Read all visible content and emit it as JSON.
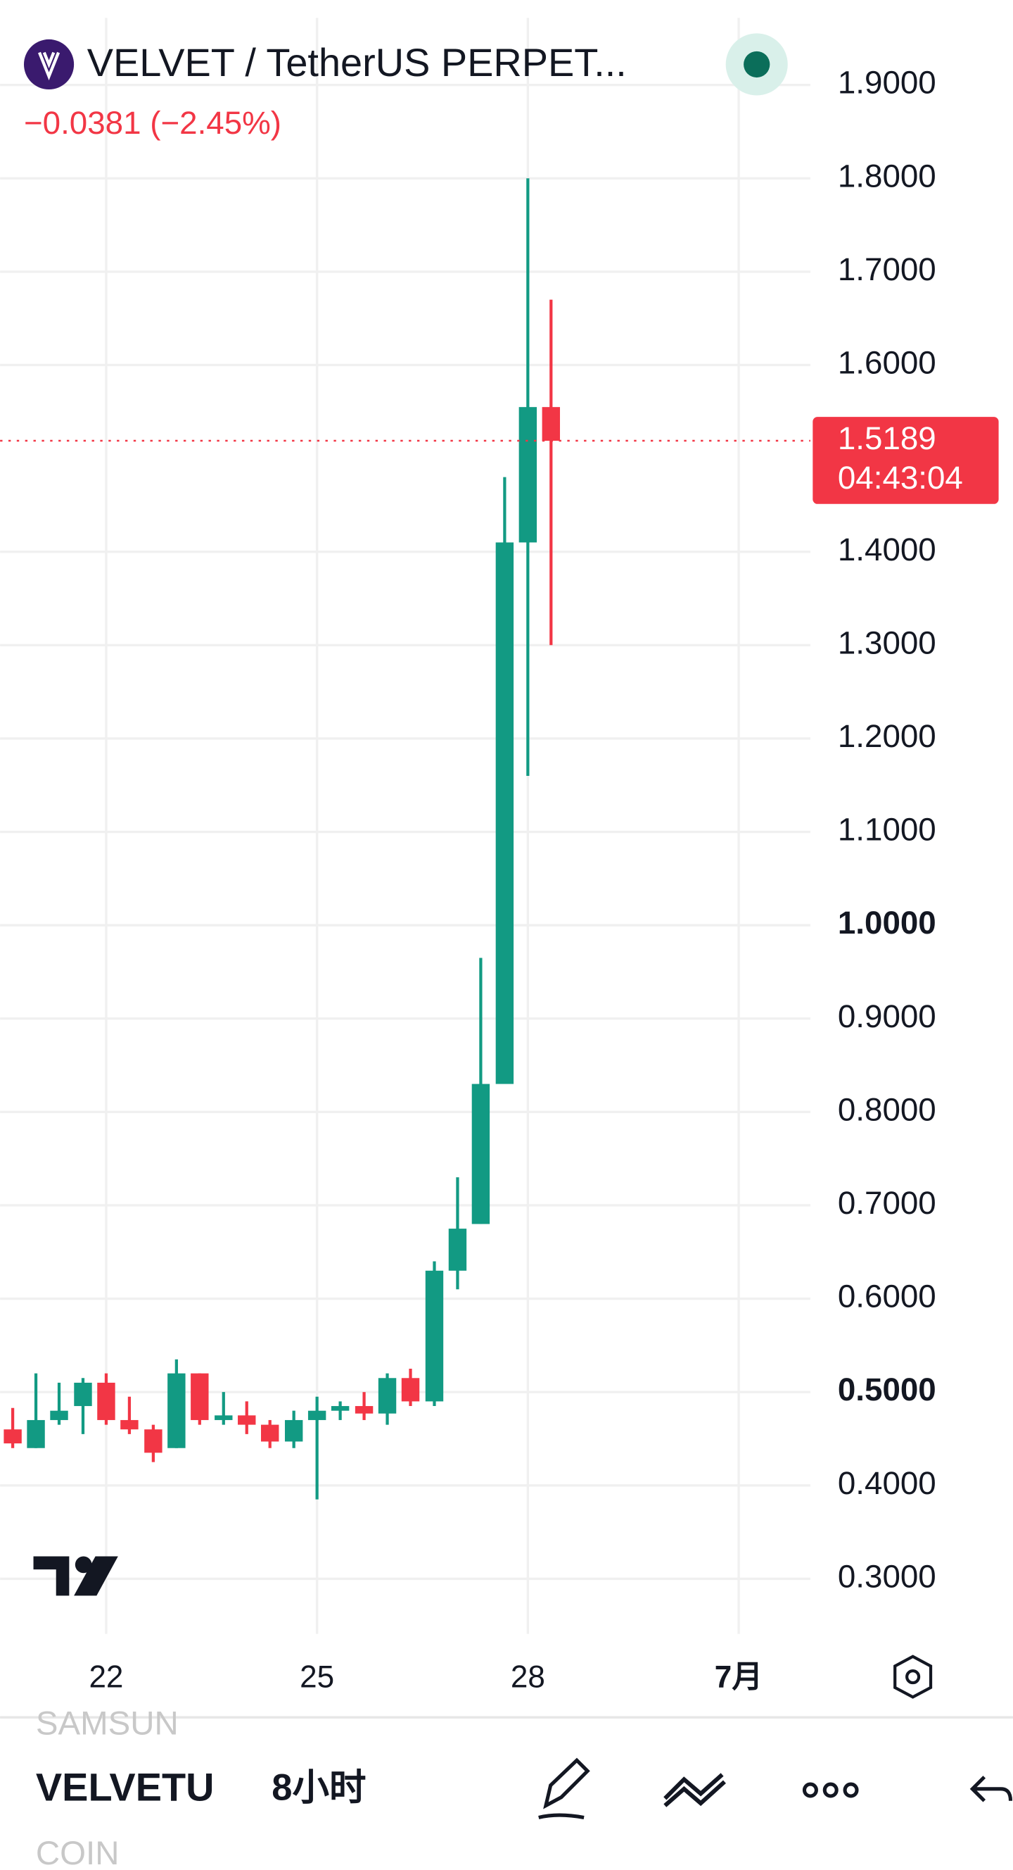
{
  "chart_data": {
    "type": "candlestick",
    "title": "VELVET / TetherUS PERPET...",
    "subtitle": "−0.0381 (−2.45%)",
    "x": [
      20.67,
      21,
      21.33,
      21.67,
      22,
      22.33,
      22.67,
      23,
      23.33,
      23.67,
      24,
      24.33,
      24.67,
      25,
      25.33,
      25.67,
      26,
      26.33,
      26.67,
      27,
      27.33,
      27.67,
      28,
      28.33
    ],
    "open": [
      0.46,
      0.44,
      0.47,
      0.485,
      0.51,
      0.47,
      0.46,
      0.44,
      0.52,
      0.47,
      0.475,
      0.465,
      0.447,
      0.47,
      0.48,
      0.485,
      0.477,
      0.515,
      0.49,
      0.63,
      0.68,
      0.83,
      1.41,
      1.555
    ],
    "high": [
      0.483,
      0.52,
      0.51,
      0.515,
      0.52,
      0.495,
      0.465,
      0.535,
      0.52,
      0.5,
      0.49,
      0.47,
      0.48,
      0.495,
      0.49,
      0.5,
      0.52,
      0.525,
      0.64,
      0.73,
      0.965,
      1.48,
      1.8,
      1.67
    ],
    "low": [
      0.44,
      0.44,
      0.465,
      0.455,
      0.465,
      0.455,
      0.425,
      0.44,
      0.465,
      0.465,
      0.455,
      0.44,
      0.44,
      0.385,
      0.47,
      0.47,
      0.465,
      0.485,
      0.485,
      0.61,
      0.68,
      0.83,
      1.16,
      1.3
    ],
    "close": [
      0.445,
      0.47,
      0.48,
      0.51,
      0.47,
      0.46,
      0.435,
      0.52,
      0.47,
      0.475,
      0.465,
      0.447,
      0.47,
      0.48,
      0.485,
      0.477,
      0.515,
      0.49,
      0.63,
      0.675,
      0.83,
      1.41,
      1.555,
      1.5189
    ],
    "up_color": "#129a83",
    "down_color": "#f23645",
    "xlim": [
      20.49,
      32.02
    ],
    "xticks": [
      22,
      25,
      28,
      {
        "value": 31,
        "label": "7月"
      }
    ],
    "ylim": [
      0.241,
      1.991
    ],
    "yticks": [
      {
        "value": 1.9,
        "label": "1.9000"
      },
      {
        "value": 1.8,
        "label": "1.8000"
      },
      {
        "value": 1.7,
        "label": "1.7000"
      },
      {
        "value": 1.6,
        "label": "1.6000"
      },
      {
        "value": 1.4,
        "label": "1.4000"
      },
      {
        "value": 1.3,
        "label": "1.3000"
      },
      {
        "value": 1.2,
        "label": "1.2000"
      },
      {
        "value": 1.1,
        "label": "1.1000"
      },
      {
        "value": 1,
        "label": "1.0000",
        "bold": true
      },
      {
        "value": 0.9,
        "label": "0.9000"
      },
      {
        "value": 0.8,
        "label": "0.8000"
      },
      {
        "value": 0.7,
        "label": "0.7000"
      },
      {
        "value": 0.6,
        "label": "0.6000"
      },
      {
        "value": 0.5,
        "label": "0.5000",
        "bold": true
      },
      {
        "value": 0.4,
        "label": "0.4000"
      },
      {
        "value": 0.3,
        "label": "0.3000"
      }
    ],
    "grid": true,
    "last_price": 1.5189,
    "countdown": "04:43:04"
  },
  "toolbar": {
    "prev": "SAMSUN",
    "symbol": "VELVETU",
    "interval": "8小时",
    "next": "COIN"
  }
}
